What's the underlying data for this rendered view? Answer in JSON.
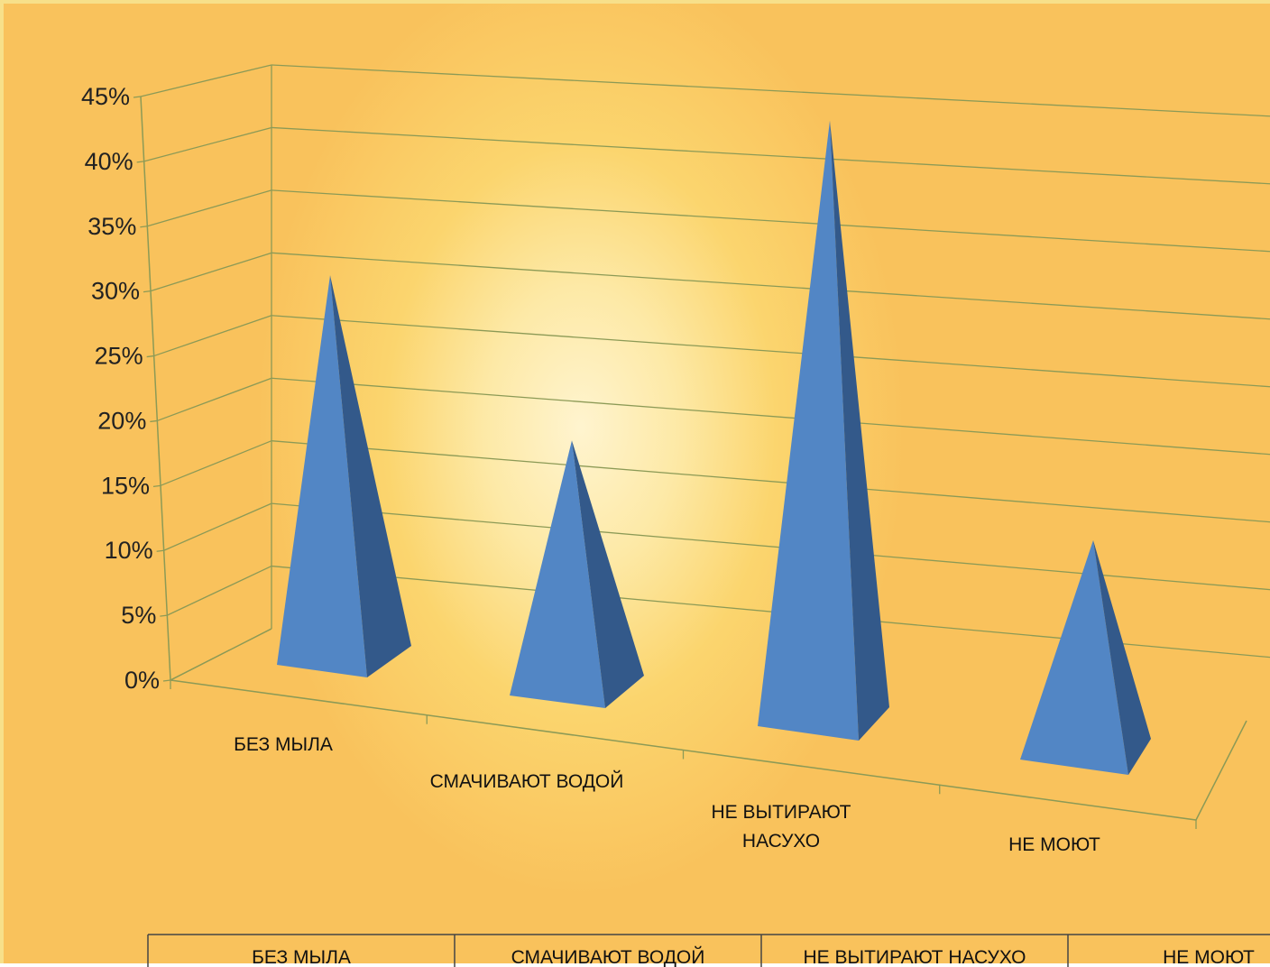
{
  "chart_data": {
    "type": "bar",
    "shape": "pyramid-3d",
    "categories": [
      "БЕЗ МЫЛА",
      "СМАЧИВАЮТ ВОДОЙ",
      "НЕ ВЫТИРАЮТ НАСУХО",
      "НЕ МОЮТ"
    ],
    "category_axis_lines": [
      [
        "БЕЗ МЫЛА"
      ],
      [
        "СМАЧИВАЮТ ВОДОЙ"
      ],
      [
        "НЕ ВЫТИРАЮТ",
        "НАСУХО"
      ],
      [
        "НЕ МОЮТ"
      ]
    ],
    "series": [
      {
        "values": [
          0.33,
          0.21,
          0.43,
          0.17
        ]
      }
    ],
    "ylim": [
      0,
      0.45
    ],
    "y_ticks": [
      "0%",
      "5%",
      "10%",
      "15%",
      "20%",
      "25%",
      "30%",
      "35%",
      "40%",
      "45%"
    ],
    "grid": true,
    "legend": "data table at bottom",
    "colors": {
      "pyramid_front": "#5286c5",
      "pyramid_side": "#33598a",
      "grid": "#8c9a56",
      "background": "#f9c25c"
    }
  }
}
